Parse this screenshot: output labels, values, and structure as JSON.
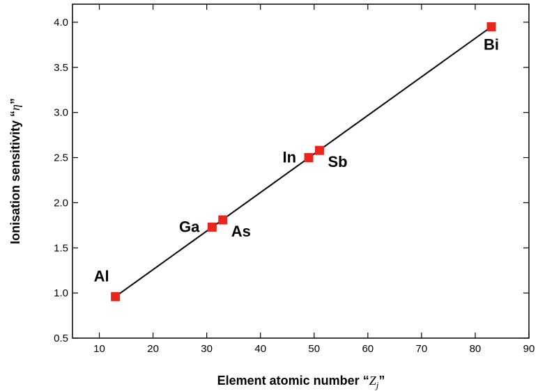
{
  "chart_data": {
    "type": "scatter",
    "title": "",
    "xlabel": {
      "text": "Element atomic number “",
      "symbol": "Z",
      "subscript": "j",
      "suffix": "”"
    },
    "ylabel": {
      "text": "Ionisation sensitivity “",
      "symbol": "η",
      "suffix": "”"
    },
    "xlim": [
      5,
      90
    ],
    "ylim": [
      0.5,
      4.2
    ],
    "x_ticks": [
      10,
      20,
      30,
      40,
      50,
      60,
      70,
      80,
      90
    ],
    "y_ticks": [
      0.5,
      1.0,
      1.5,
      2.0,
      2.5,
      3.0,
      3.5,
      4.0
    ],
    "x_tick_labels": [
      "10",
      "20",
      "30",
      "40",
      "50",
      "60",
      "70",
      "80",
      "90"
    ],
    "y_tick_labels": [
      "0.5",
      "1.0",
      "1.5",
      "2.0",
      "2.5",
      "3.0",
      "3.5",
      "4.0"
    ],
    "grid": false,
    "marker_color": "#e8261c",
    "line_color": "#000000",
    "points": [
      {
        "label": "Al",
        "x": 13,
        "y": 0.96,
        "label_side": "above-left"
      },
      {
        "label": "Ga",
        "x": 31,
        "y": 1.73,
        "label_side": "left"
      },
      {
        "label": "As",
        "x": 33,
        "y": 1.81,
        "label_side": "below-right"
      },
      {
        "label": "In",
        "x": 49,
        "y": 2.5,
        "label_side": "left"
      },
      {
        "label": "Sb",
        "x": 51,
        "y": 2.58,
        "label_side": "below-right"
      },
      {
        "label": "Bi",
        "x": 83,
        "y": 3.95,
        "label_side": "below"
      }
    ],
    "fit_line": {
      "x": [
        13,
        83
      ],
      "y": [
        0.96,
        3.95
      ]
    }
  }
}
